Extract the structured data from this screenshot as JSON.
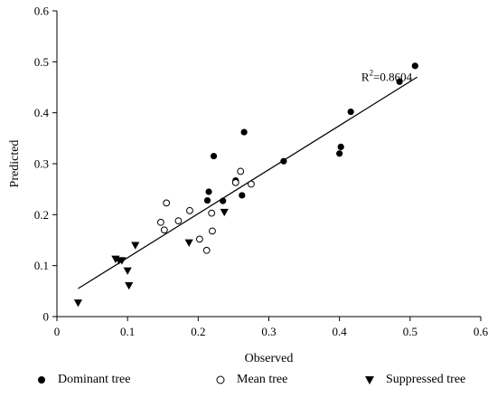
{
  "chart_data": {
    "type": "scatter",
    "xlabel": "Observed",
    "ylabel": "Predicted",
    "xlim": [
      0,
      0.6
    ],
    "ylim": [
      0,
      0.6
    ],
    "xticks": [
      "0",
      "0.1",
      "0.2",
      "0.3",
      "0.4",
      "0.5",
      "0.6"
    ],
    "yticks": [
      "0",
      "0.1",
      "0.2",
      "0.3",
      "0.4",
      "0.5",
      "0.6"
    ],
    "grid": false,
    "legend_position": "bottom",
    "annotation": {
      "r2_prefix": "R",
      "r2_sup": "2",
      "r2_value": "=0.8604"
    },
    "fit_line": {
      "x": [
        0.03,
        0.51
      ],
      "y": [
        0.055,
        0.47
      ]
    },
    "series": [
      {
        "name": "Dominant tree",
        "marker": "filled-circle",
        "points": [
          [
            0.507,
            0.492
          ],
          [
            0.485,
            0.461
          ],
          [
            0.416,
            0.402
          ],
          [
            0.402,
            0.333
          ],
          [
            0.4,
            0.32
          ],
          [
            0.321,
            0.305
          ],
          [
            0.265,
            0.362
          ],
          [
            0.222,
            0.315
          ],
          [
            0.253,
            0.267
          ],
          [
            0.262,
            0.238
          ],
          [
            0.215,
            0.245
          ],
          [
            0.213,
            0.228
          ],
          [
            0.235,
            0.227
          ]
        ]
      },
      {
        "name": "Mean tree",
        "marker": "open-circle",
        "points": [
          [
            0.26,
            0.285
          ],
          [
            0.253,
            0.263
          ],
          [
            0.275,
            0.26
          ],
          [
            0.155,
            0.223
          ],
          [
            0.188,
            0.208
          ],
          [
            0.219,
            0.203
          ],
          [
            0.172,
            0.188
          ],
          [
            0.147,
            0.185
          ],
          [
            0.152,
            0.17
          ],
          [
            0.22,
            0.168
          ],
          [
            0.202,
            0.152
          ],
          [
            0.212,
            0.13
          ]
        ]
      },
      {
        "name": "Suppressed tree",
        "marker": "filled-triangle-down",
        "points": [
          [
            0.237,
            0.205
          ],
          [
            0.187,
            0.145
          ],
          [
            0.111,
            0.14
          ],
          [
            0.083,
            0.113
          ],
          [
            0.088,
            0.11
          ],
          [
            0.092,
            0.11
          ],
          [
            0.1,
            0.09
          ],
          [
            0.102,
            0.061
          ],
          [
            0.03,
            0.027
          ]
        ]
      }
    ]
  }
}
